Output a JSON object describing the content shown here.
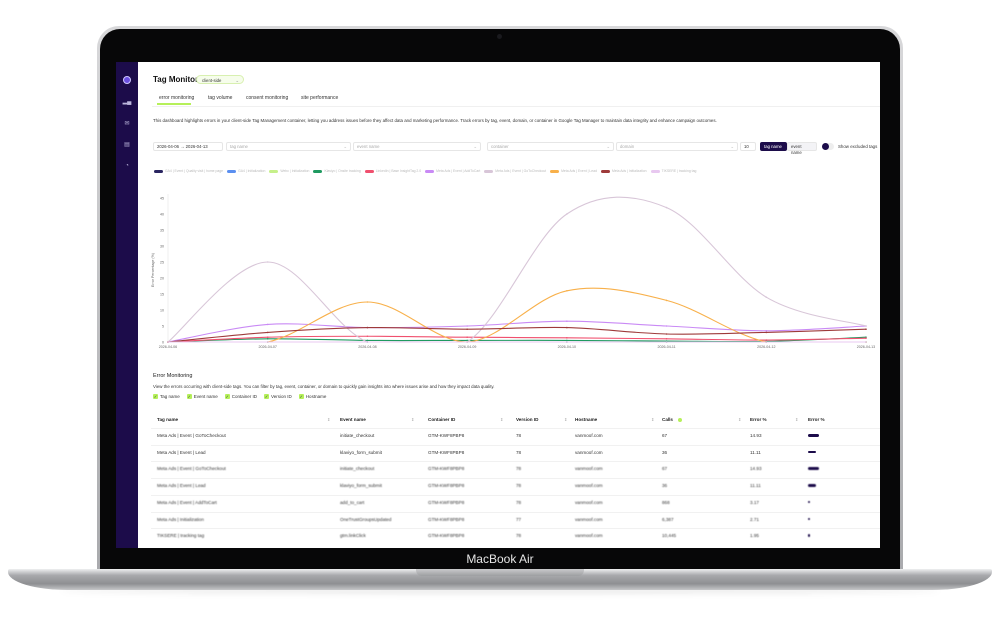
{
  "device": {
    "label": "MacBook Air"
  },
  "sidebar": {
    "items": [
      {
        "icon": "logo-icon"
      },
      {
        "icon": "bar-chart-icon"
      },
      {
        "icon": "mail-icon"
      },
      {
        "icon": "clipboard-icon"
      },
      {
        "icon": "gauge-icon"
      }
    ]
  },
  "header": {
    "title": "Tag Monitor",
    "mode_select": "client-side"
  },
  "tabs": [
    {
      "label": "error monitoring",
      "active": true
    },
    {
      "label": "tag volume"
    },
    {
      "label": "consent monitoring"
    },
    {
      "label": "site performance"
    }
  ],
  "description": "This dashboard highlights errors in your client-side Tag Management container, letting you address issues before they affect data and marketing performance. Track errors by tag, event, domain, or container in Google Tag Manager to maintain data integrity and enhance campaign outcomes.",
  "filters": {
    "date_range": "2026-04-06 → 2026-04-13",
    "tag_name_placeholder": "tag name",
    "event_name_placeholder": "event name",
    "container_placeholder": "container",
    "domain_placeholder": "domain",
    "limit": "10",
    "group_by": [
      "tag name",
      "event name"
    ],
    "group_by_active": "tag name",
    "show_excluded_label": "Show excluded tags",
    "show_excluded": false
  },
  "colors": {
    "accent": "#b6f05a",
    "sidebar": "#1c0c4a"
  },
  "chart_data": {
    "type": "line",
    "ylabel": "Error Percentage (%)",
    "xlabel": "",
    "ylim": [
      0,
      45
    ],
    "yticks": [
      "0",
      "5",
      "10",
      "15",
      "20",
      "25",
      "30",
      "35",
      "40",
      "45"
    ],
    "categories": [
      "2026-04-06",
      "2026-04-07",
      "2026-04-08",
      "2026-04-09",
      "2026-04-10",
      "2026-04-11",
      "2026-04-12",
      "2026-04-13"
    ],
    "legend_position": "top",
    "series": [
      {
        "name": "GA4 | Event | Quality visit | home page",
        "color": "#2a2560",
        "values": [
          0,
          0,
          0,
          0,
          0,
          0,
          0,
          0
        ]
      },
      {
        "name": "GA4 | Initialization",
        "color": "#5b8ff0",
        "values": [
          0,
          0,
          0,
          0,
          0,
          0,
          0,
          0
        ]
      },
      {
        "name": "Webc | Initialization",
        "color": "#c6f08a",
        "values": [
          0,
          0,
          0,
          0,
          0,
          0,
          0,
          0
        ]
      },
      {
        "name": "Klaviyo | Onsite tracking",
        "color": "#1f9a60",
        "values": [
          0,
          1,
          0.5,
          0.5,
          0.5,
          0.3,
          0.2,
          1.5
        ]
      },
      {
        "name": "LinkedIn | Base InsightTag 2.0",
        "color": "#f0506e",
        "values": [
          0,
          1.5,
          1.8,
          1.5,
          1.3,
          1.0,
          0.6,
          1.2
        ]
      },
      {
        "name": "Meta Ads | Event | AddToCart",
        "color": "#c98af5",
        "values": [
          0,
          5.5,
          4.5,
          5,
          6.5,
          5,
          3.5,
          5
        ]
      },
      {
        "name": "Meta Ads | Event | GoToCheckout",
        "color": "#d8c6d8",
        "values": [
          0,
          25,
          0,
          0,
          40,
          42,
          14,
          5
        ]
      },
      {
        "name": "Meta Ads | Event | Lead",
        "color": "#f8b04a",
        "values": [
          0,
          0,
          12.5,
          0,
          16,
          13,
          0,
          0
        ]
      },
      {
        "name": "Meta Ads | Initialization",
        "color": "#9e3a3a",
        "values": [
          0,
          3,
          4.5,
          4,
          4.5,
          2.5,
          3,
          4
        ]
      },
      {
        "name": "TIKSERE | tracking tag",
        "color": "#e8c8f0",
        "values": [
          0,
          0,
          0,
          0,
          0,
          0,
          0,
          0
        ]
      }
    ]
  },
  "error_monitoring": {
    "title": "Error Monitoring",
    "description": "View the errors occurring with client-side tags. You can filter by tag, event, container, or domain to quickly gain insights into where issues arise and how they impact data quality.",
    "column_toggles": [
      "Tag name",
      "Event name",
      "Container ID",
      "Version ID",
      "Hostname"
    ],
    "columns": [
      "Tag name",
      "Event name",
      "Container ID",
      "Version ID",
      "Hostname",
      "Calls",
      "Error %",
      "Error %"
    ],
    "rows": [
      {
        "tag": "Meta Ads | Event | GoToCheckout",
        "event": "initiate_checkout",
        "container": "GTM-KWF8PBP8",
        "version": "78",
        "host": "vanmoof.com",
        "calls": "67",
        "error": "14.93",
        "pct": 14.93
      },
      {
        "tag": "Meta Ads | Event | Lead",
        "event": "klaviyo_form_submit",
        "container": "GTM-KWF8PBP8",
        "version": "78",
        "host": "vanmoof.com",
        "calls": "36",
        "error": "11.11",
        "pct": 11.11
      },
      {
        "tag": "Meta Ads | Event | GoToCheckout",
        "event": "initiate_checkout",
        "container": "GTM-KWF8PBP8",
        "version": "78",
        "host": "vanmoof.com",
        "calls": "67",
        "error": "14.93",
        "pct": 14.93
      },
      {
        "tag": "Meta Ads | Event | Lead",
        "event": "klaviyo_form_submit",
        "container": "GTM-KWF8PBP8",
        "version": "78",
        "host": "vanmoof.com",
        "calls": "36",
        "error": "11.11",
        "pct": 11.11
      },
      {
        "tag": "Meta Ads | Event | AddToCart",
        "event": "add_to_cart",
        "container": "GTM-KWF8PBP8",
        "version": "78",
        "host": "vanmoof.com",
        "calls": "868",
        "error": "3.17",
        "pct": 3.17
      },
      {
        "tag": "Meta Ads | Initialization",
        "event": "OneTrustGroupsUpdated",
        "container": "GTM-KWF8PBP8",
        "version": "77",
        "host": "vanmoof.com",
        "calls": "6,387",
        "error": "2.71",
        "pct": 2.71
      },
      {
        "tag": "TIKSERE | tracking tag",
        "event": "gtm.linkClick",
        "container": "GTM-KWF8PBP8",
        "version": "78",
        "host": "vanmoof.com",
        "calls": "10,445",
        "error": "1.95",
        "pct": 1.95
      }
    ]
  }
}
